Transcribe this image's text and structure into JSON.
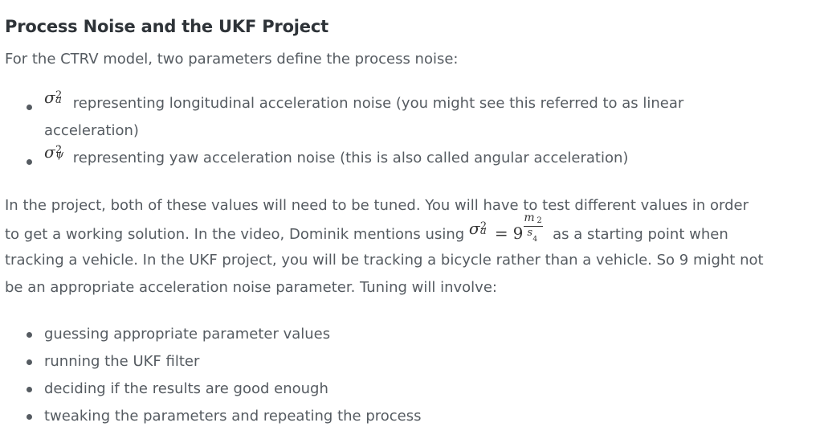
{
  "heading": "Process Noise and the UKF Project",
  "intro": "For the CTRV model, two parameters define the process noise:",
  "noise_params": [
    {
      "symbol": "σ",
      "superscript": "2",
      "subscript": "a",
      "text": "representing longitudinal acceleration noise (you might see this referred to as linear acceleration)"
    },
    {
      "symbol": "σ",
      "superscript": "2",
      "subscript": "ψ",
      "subscript_dot": "˙",
      "text": "representing yaw acceleration noise (this is also called angular acceleration)"
    }
  ],
  "paragraph": {
    "line1": "In the project, both of these values will need to be tuned. You will have to test different values in order",
    "line2_before": "to get a working solution. In the video, Dominik mentions using",
    "line2_after": "as a starting point when",
    "line3": "tracking a vehicle. In the UKF project, you will be tracking a bicycle rather than a vehicle. So 9 might not",
    "line4": "be an appropriate acceleration noise parameter. Tuning will involve:"
  },
  "equation": {
    "symbol": "σ",
    "superscript": "2",
    "subscript": "a",
    "operator": "=",
    "value": "9",
    "numerator": "m",
    "numerator_power": "2",
    "denominator": "s",
    "denominator_power": "4"
  },
  "tuning_steps": [
    "guessing appropriate parameter values",
    "running the UKF filter",
    "deciding if the results are good enough",
    "tweaking the parameters and repeating the process"
  ]
}
